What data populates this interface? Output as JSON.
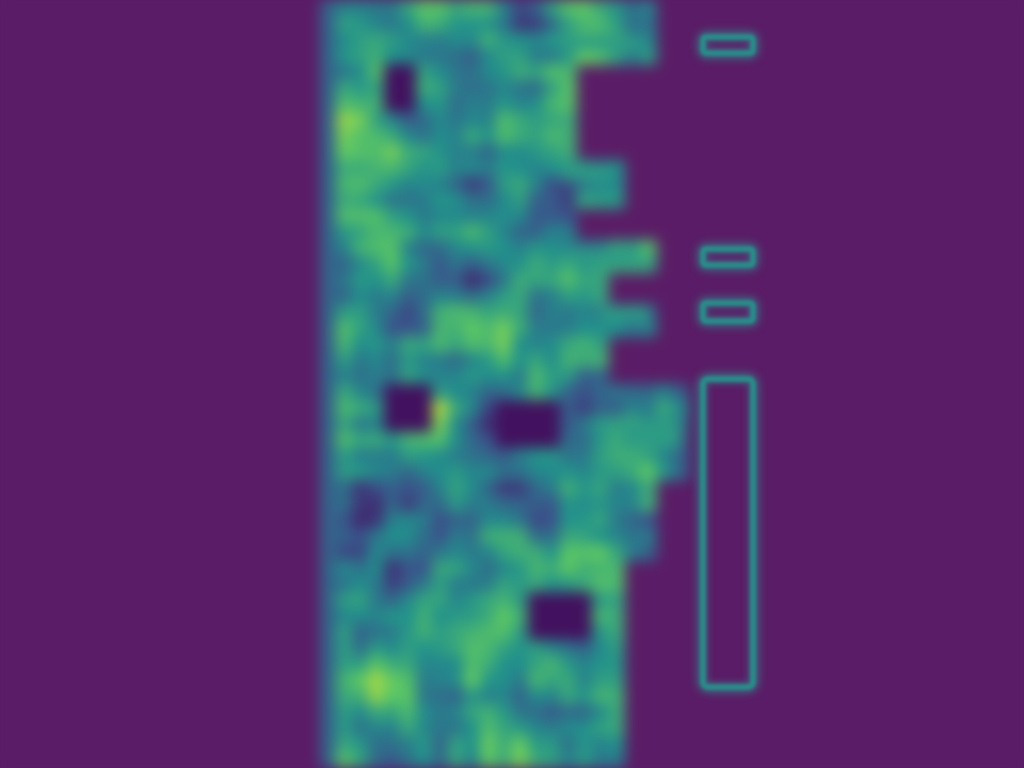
{
  "colors": {
    "background": "#5a1c66",
    "outline": "#2a8c8a",
    "colormap": "viridis"
  },
  "heatmap": {
    "colormap": "viridis",
    "description_free": true
  },
  "outline_shapes": [
    {
      "name": "dash-1",
      "kind": "small-rounded-bar"
    },
    {
      "name": "dash-2",
      "kind": "small-rounded-bar"
    },
    {
      "name": "dash-3",
      "kind": "small-rounded-bar"
    },
    {
      "name": "tall-rect",
      "kind": "tall-rounded-rectangle"
    }
  ]
}
